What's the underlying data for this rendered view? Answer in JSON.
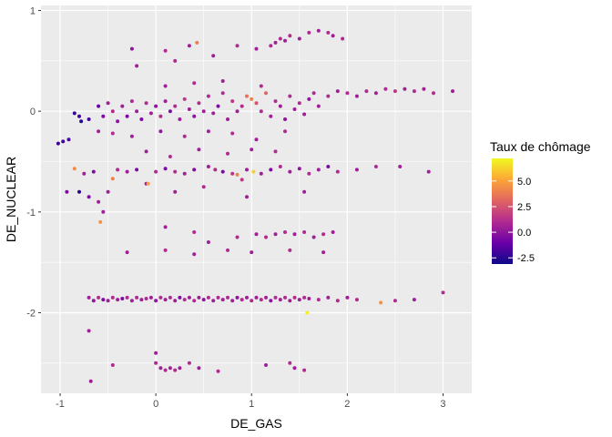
{
  "chart_data": {
    "type": "scatter",
    "xlabel": "DE_GAS",
    "ylabel": "DE_NUCLEAR",
    "xlim": [
      -1.2,
      3.3
    ],
    "ylim": [
      -2.8,
      1.05
    ],
    "x_ticks": [
      -1,
      0,
      1,
      2,
      3
    ],
    "y_ticks": [
      -2,
      -1,
      0,
      1
    ],
    "x_tick_labels": [
      "-1",
      "0",
      "1",
      "2",
      "3"
    ],
    "y_tick_labels": [
      "-2",
      "-1",
      "0",
      "1"
    ],
    "grid": true,
    "legend": {
      "title": "Taux de chômage",
      "placement": "right",
      "range": [
        -3.1,
        7.2
      ],
      "ticks": [
        -2.5,
        0.0,
        2.5,
        5.0
      ],
      "tick_labels": [
        "-2.5",
        "0.0",
        "2.5",
        "5.0"
      ],
      "colors": [
        "#0d0887",
        "#6a00a8",
        "#b12a90",
        "#e16462",
        "#fca636",
        "#f0f921"
      ]
    },
    "points": [
      {
        "x": -0.97,
        "y": -0.3,
        "c": -2.0
      },
      {
        "x": -1.02,
        "y": -0.32,
        "c": -2.2
      },
      {
        "x": -0.91,
        "y": -0.28,
        "c": -1.8
      },
      {
        "x": -0.93,
        "y": -0.8,
        "c": -0.5
      },
      {
        "x": -0.8,
        "y": -0.8,
        "c": -2.5
      },
      {
        "x": -0.7,
        "y": -0.85,
        "c": -0.5
      },
      {
        "x": -0.6,
        "y": -0.9,
        "c": 0.5
      },
      {
        "x": -0.55,
        "y": -1.0,
        "c": 0.5
      },
      {
        "x": -0.58,
        "y": -1.1,
        "c": 4.5
      },
      {
        "x": -0.5,
        "y": -0.8,
        "c": 0.5
      },
      {
        "x": -0.85,
        "y": -0.57,
        "c": 4.3
      },
      {
        "x": -0.75,
        "y": -0.62,
        "c": 0.5
      },
      {
        "x": -0.65,
        "y": -0.6,
        "c": -0.5
      },
      {
        "x": -0.45,
        "y": -0.67,
        "c": 4.0
      },
      {
        "x": -0.4,
        "y": -0.58,
        "c": 1.0
      },
      {
        "x": -0.3,
        "y": -0.6,
        "c": 0.5
      },
      {
        "x": -0.2,
        "y": -0.58,
        "c": -0.5
      },
      {
        "x": -0.1,
        "y": -0.72,
        "c": 0.5
      },
      {
        "x": -0.08,
        "y": -0.72,
        "c": 5.0
      },
      {
        "x": 0.0,
        "y": -0.6,
        "c": 1.0
      },
      {
        "x": 0.1,
        "y": -0.57,
        "c": -0.5
      },
      {
        "x": 0.2,
        "y": -0.6,
        "c": 1.0
      },
      {
        "x": 0.3,
        "y": -0.62,
        "c": 0.5
      },
      {
        "x": 0.4,
        "y": -0.58,
        "c": -0.5
      },
      {
        "x": 0.55,
        "y": -0.55,
        "c": 0.5
      },
      {
        "x": 0.62,
        "y": -0.58,
        "c": 1.0
      },
      {
        "x": 0.7,
        "y": -0.6,
        "c": -0.5
      },
      {
        "x": 0.8,
        "y": -0.62,
        "c": 1.5
      },
      {
        "x": 0.85,
        "y": -0.63,
        "c": 4.0
      },
      {
        "x": 0.9,
        "y": -0.68,
        "c": 1.5
      },
      {
        "x": 0.95,
        "y": -0.58,
        "c": 0.5
      },
      {
        "x": 1.02,
        "y": -0.6,
        "c": 6.2
      },
      {
        "x": 1.1,
        "y": -0.62,
        "c": 0.5
      },
      {
        "x": 1.2,
        "y": -0.58,
        "c": -0.5
      },
      {
        "x": 1.3,
        "y": -0.55,
        "c": 1.0
      },
      {
        "x": 1.4,
        "y": -0.6,
        "c": 0.5
      },
      {
        "x": 1.5,
        "y": -0.57,
        "c": 0.0
      },
      {
        "x": 1.6,
        "y": -0.62,
        "c": 1.0
      },
      {
        "x": 1.7,
        "y": -0.58,
        "c": 0.5
      },
      {
        "x": 1.8,
        "y": -0.55,
        "c": -0.5
      },
      {
        "x": 1.9,
        "y": -0.6,
        "c": 1.0
      },
      {
        "x": 2.1,
        "y": -0.58,
        "c": 0.5
      },
      {
        "x": 2.3,
        "y": -0.55,
        "c": 1.0
      },
      {
        "x": 2.55,
        "y": -0.55,
        "c": 0.5
      },
      {
        "x": 2.85,
        "y": -0.6,
        "c": 0.5
      },
      {
        "x": 0.2,
        "y": -0.8,
        "c": 0.5
      },
      {
        "x": 0.5,
        "y": -0.75,
        "c": 1.0
      },
      {
        "x": 0.95,
        "y": -0.85,
        "c": 0.5
      },
      {
        "x": 1.55,
        "y": -0.8,
        "c": 0.5
      },
      {
        "x": -0.8,
        "y": -0.05,
        "c": -2.0
      },
      {
        "x": -0.78,
        "y": -0.1,
        "c": -2.5
      },
      {
        "x": -0.85,
        "y": -0.02,
        "c": -2.2
      },
      {
        "x": -0.7,
        "y": -0.08,
        "c": -1.8
      },
      {
        "x": -0.6,
        "y": 0.05,
        "c": -1.0
      },
      {
        "x": -0.55,
        "y": -0.05,
        "c": -0.5
      },
      {
        "x": -0.5,
        "y": 0.08,
        "c": 0.5
      },
      {
        "x": -0.45,
        "y": 0.0,
        "c": 1.0
      },
      {
        "x": -0.4,
        "y": -0.1,
        "c": 0.0
      },
      {
        "x": -0.35,
        "y": 0.05,
        "c": 0.5
      },
      {
        "x": -0.3,
        "y": -0.05,
        "c": -0.5
      },
      {
        "x": -0.25,
        "y": 0.1,
        "c": 1.0
      },
      {
        "x": -0.2,
        "y": 0.0,
        "c": 0.5
      },
      {
        "x": -0.15,
        "y": -0.08,
        "c": -0.5
      },
      {
        "x": -0.1,
        "y": 0.08,
        "c": 1.0
      },
      {
        "x": -0.05,
        "y": -0.02,
        "c": 0.5
      },
      {
        "x": 0.0,
        "y": 0.05,
        "c": 0.0
      },
      {
        "x": 0.05,
        "y": -0.05,
        "c": 1.0
      },
      {
        "x": 0.1,
        "y": 0.1,
        "c": 0.5
      },
      {
        "x": 0.15,
        "y": 0.0,
        "c": -0.5
      },
      {
        "x": 0.2,
        "y": 0.05,
        "c": 1.0
      },
      {
        "x": 0.25,
        "y": -0.08,
        "c": 0.5
      },
      {
        "x": 0.3,
        "y": 0.12,
        "c": 1.5
      },
      {
        "x": 0.35,
        "y": 0.02,
        "c": 0.5
      },
      {
        "x": 0.4,
        "y": -0.05,
        "c": 0.0
      },
      {
        "x": 0.45,
        "y": 0.08,
        "c": 1.0
      },
      {
        "x": 0.5,
        "y": 0.0,
        "c": 0.5
      },
      {
        "x": 0.55,
        "y": 0.15,
        "c": 1.0
      },
      {
        "x": 0.6,
        "y": -0.02,
        "c": 0.5
      },
      {
        "x": 0.65,
        "y": 0.05,
        "c": -0.5
      },
      {
        "x": 0.7,
        "y": 0.18,
        "c": 1.0
      },
      {
        "x": 0.75,
        "y": -0.08,
        "c": 0.5
      },
      {
        "x": 0.8,
        "y": 0.1,
        "c": 1.5
      },
      {
        "x": 0.85,
        "y": 0.0,
        "c": 0.5
      },
      {
        "x": 0.9,
        "y": 0.05,
        "c": 1.0
      },
      {
        "x": 0.95,
        "y": 0.15,
        "c": 3.5
      },
      {
        "x": 1.0,
        "y": 0.12,
        "c": 4.0
      },
      {
        "x": 1.05,
        "y": 0.08,
        "c": 2.5
      },
      {
        "x": 1.1,
        "y": 0.0,
        "c": 1.0
      },
      {
        "x": 1.15,
        "y": 0.18,
        "c": 3.0
      },
      {
        "x": 1.2,
        "y": -0.05,
        "c": 0.5
      },
      {
        "x": 1.25,
        "y": 0.1,
        "c": 1.0
      },
      {
        "x": 1.3,
        "y": 0.05,
        "c": 0.5
      },
      {
        "x": 1.35,
        "y": -0.08,
        "c": 0.0
      },
      {
        "x": 1.4,
        "y": 0.15,
        "c": 1.0
      },
      {
        "x": 1.45,
        "y": 0.02,
        "c": 0.5
      },
      {
        "x": 1.5,
        "y": 0.08,
        "c": 1.0
      },
      {
        "x": 1.55,
        "y": -0.03,
        "c": 0.5
      },
      {
        "x": 1.6,
        "y": 0.12,
        "c": 0.0
      },
      {
        "x": 1.65,
        "y": 0.18,
        "c": 1.0
      },
      {
        "x": 1.7,
        "y": 0.05,
        "c": 0.5
      },
      {
        "x": 1.8,
        "y": 0.15,
        "c": 1.0
      },
      {
        "x": 1.9,
        "y": 0.2,
        "c": 0.5
      },
      {
        "x": 2.0,
        "y": 0.18,
        "c": 1.0
      },
      {
        "x": 2.1,
        "y": 0.15,
        "c": 0.5
      },
      {
        "x": 2.2,
        "y": 0.2,
        "c": 1.0
      },
      {
        "x": 2.3,
        "y": 0.18,
        "c": 0.5
      },
      {
        "x": 2.4,
        "y": 0.22,
        "c": 1.0
      },
      {
        "x": 2.5,
        "y": 0.2,
        "c": 1.5
      },
      {
        "x": 2.6,
        "y": 0.22,
        "c": 0.5
      },
      {
        "x": 2.7,
        "y": 0.2,
        "c": 1.0
      },
      {
        "x": 2.8,
        "y": 0.22,
        "c": 0.5
      },
      {
        "x": 2.9,
        "y": 0.18,
        "c": 1.0
      },
      {
        "x": 3.1,
        "y": 0.2,
        "c": 0.5
      },
      {
        "x": 0.1,
        "y": 0.25,
        "c": 0.5
      },
      {
        "x": 0.4,
        "y": 0.28,
        "c": 1.0
      },
      {
        "x": 0.7,
        "y": 0.3,
        "c": 0.5
      },
      {
        "x": 1.1,
        "y": 0.25,
        "c": 1.0
      },
      {
        "x": -0.2,
        "y": 0.45,
        "c": 0.5
      },
      {
        "x": 0.2,
        "y": 0.5,
        "c": 1.0
      },
      {
        "x": 0.6,
        "y": 0.55,
        "c": 0.5
      },
      {
        "x": -0.25,
        "y": 0.62,
        "c": 0.0
      },
      {
        "x": 0.1,
        "y": 0.6,
        "c": 1.0
      },
      {
        "x": 0.35,
        "y": 0.65,
        "c": 0.5
      },
      {
        "x": 0.43,
        "y": 0.68,
        "c": 4.0
      },
      {
        "x": 0.85,
        "y": 0.65,
        "c": 1.0
      },
      {
        "x": 1.05,
        "y": 0.62,
        "c": 0.5
      },
      {
        "x": 1.2,
        "y": 0.65,
        "c": 1.0
      },
      {
        "x": 1.25,
        "y": 0.68,
        "c": 0.5
      },
      {
        "x": 1.3,
        "y": 0.72,
        "c": 1.0
      },
      {
        "x": 1.35,
        "y": 0.7,
        "c": 0.5
      },
      {
        "x": 1.4,
        "y": 0.75,
        "c": 1.0
      },
      {
        "x": 1.5,
        "y": 0.72,
        "c": 0.5
      },
      {
        "x": 1.6,
        "y": 0.78,
        "c": 1.0
      },
      {
        "x": 1.7,
        "y": 0.8,
        "c": 0.5
      },
      {
        "x": 1.8,
        "y": 0.78,
        "c": 1.0
      },
      {
        "x": 1.85,
        "y": 0.75,
        "c": 0.5
      },
      {
        "x": 1.95,
        "y": 0.72,
        "c": 1.0
      },
      {
        "x": -0.6,
        "y": -0.2,
        "c": 0.5
      },
      {
        "x": -0.45,
        "y": -0.22,
        "c": 1.0
      },
      {
        "x": -0.25,
        "y": -0.25,
        "c": 0.5
      },
      {
        "x": 0.05,
        "y": -0.2,
        "c": 0.0
      },
      {
        "x": 0.3,
        "y": -0.25,
        "c": 1.0
      },
      {
        "x": 0.55,
        "y": -0.2,
        "c": 0.5
      },
      {
        "x": 0.8,
        "y": -0.22,
        "c": 1.0
      },
      {
        "x": 1.05,
        "y": -0.28,
        "c": 0.5
      },
      {
        "x": 1.35,
        "y": -0.2,
        "c": 1.0
      },
      {
        "x": -0.1,
        "y": -0.4,
        "c": 0.5
      },
      {
        "x": 0.15,
        "y": -0.45,
        "c": 1.0
      },
      {
        "x": 0.45,
        "y": -0.38,
        "c": 0.5
      },
      {
        "x": 0.75,
        "y": -0.42,
        "c": 1.0
      },
      {
        "x": 1.0,
        "y": -0.38,
        "c": 0.5
      },
      {
        "x": 1.25,
        "y": -0.4,
        "c": 1.0
      },
      {
        "x": 0.1,
        "y": -1.15,
        "c": 0.5
      },
      {
        "x": 0.4,
        "y": -1.2,
        "c": 1.0
      },
      {
        "x": 0.55,
        "y": -1.3,
        "c": 0.5
      },
      {
        "x": 0.85,
        "y": -1.25,
        "c": 1.0
      },
      {
        "x": 1.05,
        "y": -1.22,
        "c": 0.5
      },
      {
        "x": 1.15,
        "y": -1.25,
        "c": 1.0
      },
      {
        "x": 1.25,
        "y": -1.22,
        "c": 0.5
      },
      {
        "x": 1.35,
        "y": -1.2,
        "c": 1.0
      },
      {
        "x": 1.45,
        "y": -1.22,
        "c": 0.5
      },
      {
        "x": 1.55,
        "y": -1.2,
        "c": 1.0
      },
      {
        "x": 1.65,
        "y": -1.25,
        "c": 0.5
      },
      {
        "x": 1.75,
        "y": -1.22,
        "c": 1.0
      },
      {
        "x": 1.85,
        "y": -1.2,
        "c": 0.5
      },
      {
        "x": -0.3,
        "y": -1.4,
        "c": 0.5
      },
      {
        "x": 0.1,
        "y": -1.38,
        "c": 1.0
      },
      {
        "x": 0.4,
        "y": -1.42,
        "c": 0.5
      },
      {
        "x": 0.75,
        "y": -1.38,
        "c": 1.0
      },
      {
        "x": 1.0,
        "y": -1.4,
        "c": 0.5
      },
      {
        "x": 1.4,
        "y": -1.38,
        "c": 1.0
      },
      {
        "x": 1.75,
        "y": -1.4,
        "c": 0.5
      },
      {
        "x": -0.7,
        "y": -1.85,
        "c": 0.5
      },
      {
        "x": -0.65,
        "y": -1.88,
        "c": 0.0
      },
      {
        "x": -0.6,
        "y": -1.85,
        "c": 1.0
      },
      {
        "x": -0.55,
        "y": -1.87,
        "c": -0.5
      },
      {
        "x": -0.5,
        "y": -1.88,
        "c": 0.5
      },
      {
        "x": -0.45,
        "y": -1.85,
        "c": 1.0
      },
      {
        "x": -0.4,
        "y": -1.87,
        "c": 0.5
      },
      {
        "x": -0.35,
        "y": -1.86,
        "c": -0.5
      },
      {
        "x": -0.3,
        "y": -1.85,
        "c": 1.0
      },
      {
        "x": -0.25,
        "y": -1.88,
        "c": 0.5
      },
      {
        "x": -0.2,
        "y": -1.85,
        "c": 1.0
      },
      {
        "x": -0.15,
        "y": -1.87,
        "c": 0.5
      },
      {
        "x": -0.1,
        "y": -1.86,
        "c": 1.0
      },
      {
        "x": -0.05,
        "y": -1.85,
        "c": 0.5
      },
      {
        "x": 0.0,
        "y": -1.88,
        "c": 0.0
      },
      {
        "x": 0.05,
        "y": -1.85,
        "c": 1.0
      },
      {
        "x": 0.1,
        "y": -1.87,
        "c": 0.5
      },
      {
        "x": 0.15,
        "y": -1.85,
        "c": 1.0
      },
      {
        "x": 0.2,
        "y": -1.88,
        "c": 0.5
      },
      {
        "x": 0.25,
        "y": -1.85,
        "c": -0.5
      },
      {
        "x": 0.3,
        "y": -1.87,
        "c": 1.0
      },
      {
        "x": 0.35,
        "y": -1.85,
        "c": 0.5
      },
      {
        "x": 0.4,
        "y": -1.88,
        "c": 1.0
      },
      {
        "x": 0.45,
        "y": -1.85,
        "c": 0.5
      },
      {
        "x": 0.5,
        "y": -1.87,
        "c": 0.0
      },
      {
        "x": 0.55,
        "y": -1.85,
        "c": 1.0
      },
      {
        "x": 0.6,
        "y": -1.88,
        "c": 0.5
      },
      {
        "x": 0.65,
        "y": -1.85,
        "c": 1.0
      },
      {
        "x": 0.7,
        "y": -1.87,
        "c": 0.5
      },
      {
        "x": 0.75,
        "y": -1.85,
        "c": 1.0
      },
      {
        "x": 0.8,
        "y": -1.88,
        "c": 0.5
      },
      {
        "x": 0.85,
        "y": -1.85,
        "c": 0.0
      },
      {
        "x": 0.9,
        "y": -1.87,
        "c": 1.0
      },
      {
        "x": 0.95,
        "y": -1.85,
        "c": 0.5
      },
      {
        "x": 1.0,
        "y": -1.88,
        "c": 1.0
      },
      {
        "x": 1.05,
        "y": -1.85,
        "c": 0.5
      },
      {
        "x": 1.1,
        "y": -1.87,
        "c": 1.0
      },
      {
        "x": 1.15,
        "y": -1.85,
        "c": 0.5
      },
      {
        "x": 1.2,
        "y": -1.88,
        "c": 0.0
      },
      {
        "x": 1.25,
        "y": -1.85,
        "c": 1.0
      },
      {
        "x": 1.3,
        "y": -1.87,
        "c": 0.5
      },
      {
        "x": 1.35,
        "y": -1.85,
        "c": 1.0
      },
      {
        "x": 1.4,
        "y": -1.88,
        "c": 0.5
      },
      {
        "x": 1.45,
        "y": -1.85,
        "c": 1.0
      },
      {
        "x": 1.5,
        "y": -1.87,
        "c": 0.5
      },
      {
        "x": 1.55,
        "y": -1.85,
        "c": 1.0
      },
      {
        "x": 1.6,
        "y": -1.86,
        "c": 0.5
      },
      {
        "x": 1.7,
        "y": -1.87,
        "c": 1.0
      },
      {
        "x": 1.8,
        "y": -1.85,
        "c": 0.5
      },
      {
        "x": 1.9,
        "y": -1.88,
        "c": 1.0
      },
      {
        "x": 2.0,
        "y": -1.85,
        "c": 0.5
      },
      {
        "x": 2.1,
        "y": -1.87,
        "c": 1.0
      },
      {
        "x": 2.35,
        "y": -1.9,
        "c": 4.5
      },
      {
        "x": 2.5,
        "y": -1.88,
        "c": 1.0
      },
      {
        "x": 2.7,
        "y": -1.87,
        "c": 0.5
      },
      {
        "x": 3.0,
        "y": -1.8,
        "c": 1.0
      },
      {
        "x": 1.58,
        "y": -2.0,
        "c": 7.0
      },
      {
        "x": -0.7,
        "y": -2.18,
        "c": 0.5
      },
      {
        "x": -0.68,
        "y": -2.68,
        "c": 0.5
      },
      {
        "x": -0.45,
        "y": -2.52,
        "c": 1.0
      },
      {
        "x": 0.0,
        "y": -2.4,
        "c": 0.5
      },
      {
        "x": 0.0,
        "y": -2.5,
        "c": 1.0
      },
      {
        "x": 0.05,
        "y": -2.55,
        "c": 0.5
      },
      {
        "x": 0.1,
        "y": -2.57,
        "c": 1.0
      },
      {
        "x": 0.15,
        "y": -2.55,
        "c": 0.5
      },
      {
        "x": 0.2,
        "y": -2.57,
        "c": 1.0
      },
      {
        "x": 0.25,
        "y": -2.55,
        "c": 0.5
      },
      {
        "x": 0.35,
        "y": -2.5,
        "c": 1.0
      },
      {
        "x": 0.45,
        "y": -2.55,
        "c": 0.5
      },
      {
        "x": 0.65,
        "y": -2.58,
        "c": 1.0
      },
      {
        "x": 1.15,
        "y": -2.52,
        "c": 0.5
      },
      {
        "x": 1.4,
        "y": -2.5,
        "c": 1.0
      },
      {
        "x": 1.45,
        "y": -2.55,
        "c": 0.5
      },
      {
        "x": 1.55,
        "y": -2.57,
        "c": 1.0
      }
    ]
  }
}
